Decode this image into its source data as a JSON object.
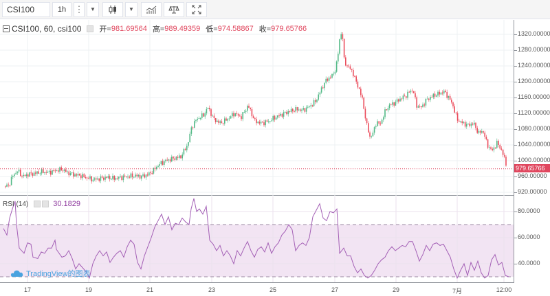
{
  "toolbar": {
    "symbol": "CSI100",
    "interval": "1h",
    "more_icon": "vertical-dots-icon",
    "dropdown_icon": "caret-down-icon",
    "chart_type_icon": "candlestick-icon",
    "indicators_icon": "indicators-icon",
    "compare_icon": "scales-icon",
    "fullscreen_icon": "fullscreen-icon"
  },
  "main_pane": {
    "legend": {
      "title": "CSI100, 60, csi100",
      "open_label": "开=",
      "open": "981.69564",
      "high_label": "高=",
      "high": "989.49359",
      "low_label": "低=",
      "low": "974.58867",
      "close_label": "收=",
      "close": "979.65766"
    },
    "current_price": "979.65766",
    "price_axis": [
      "1320.00000",
      "1280.00000",
      "1240.00000",
      "1200.00000",
      "1160.00000",
      "1120.00000",
      "1080.00000",
      "1040.00000",
      "1000.00000",
      "960.00000",
      "920.00000"
    ]
  },
  "rsi_pane": {
    "legend": {
      "name": "RSI (14)",
      "value": "30.1829"
    },
    "axis": [
      "80.0000",
      "60.0000",
      "40.0000"
    ],
    "upper_band": 70,
    "lower_band": 30
  },
  "time_axis": [
    "17",
    "19",
    "21",
    "23",
    "25",
    "27",
    "29",
    "7月",
    "12:00"
  ],
  "watermark": "TradingView的图表",
  "colors": {
    "up": "#53b987",
    "down": "#eb4d5c",
    "rsi_line": "#a35fb5",
    "rsi_band_fill": "#f2e4f3",
    "price_line": "#e0475e"
  },
  "chart_data": [
    {
      "type": "candlestick",
      "title": "CSI100, 60, csi100",
      "xlabel": "",
      "ylabel": "",
      "x_ticks": [
        "17",
        "19",
        "21",
        "23",
        "25",
        "27",
        "29",
        "7月",
        "12:00"
      ],
      "ylim": [
        910,
        1335
      ],
      "series": [
        {
          "name": "close_approx",
          "x": [
            "16",
            "17",
            "18",
            "19",
            "20",
            "21",
            "21.5",
            "22",
            "22.5",
            "23",
            "24",
            "25",
            "25.5",
            "26",
            "26.5",
            "27",
            "27.3",
            "27.6",
            "28",
            "28.5",
            "29",
            "29.5",
            "30",
            "30.5",
            "7月",
            "1.5",
            "12:00"
          ],
          "values": [
            935,
            975,
            960,
            950,
            955,
            965,
            1010,
            1075,
            1125,
            1110,
            1095,
            1115,
            1125,
            1150,
            1210,
            1325,
            1250,
            1190,
            1040,
            1095,
            1175,
            1125,
            1175,
            1150,
            1085,
            1045,
            979.66
          ]
        }
      ],
      "last": {
        "open": 981.69564,
        "high": 989.49359,
        "low": 974.58867,
        "close": 979.65766
      }
    },
    {
      "type": "line",
      "title": "RSI (14)",
      "ylim": [
        25,
        92
      ],
      "bands": [
        30,
        70
      ],
      "series": [
        {
          "name": "RSI (14)",
          "x": [
            "16",
            "17",
            "18",
            "19",
            "20",
            "21",
            "21.5",
            "22",
            "22.5",
            "23",
            "24",
            "25",
            "26",
            "26.5",
            "27",
            "27.3",
            "28",
            "28.5",
            "29",
            "29.5",
            "30",
            "30.5",
            "7月",
            "1.5",
            "12:00"
          ],
          "values": [
            75,
            50,
            55,
            40,
            45,
            60,
            55,
            75,
            85,
            72,
            45,
            50,
            60,
            55,
            88,
            70,
            40,
            35,
            50,
            58,
            45,
            55,
            35,
            45,
            30.18
          ]
        }
      ]
    }
  ]
}
